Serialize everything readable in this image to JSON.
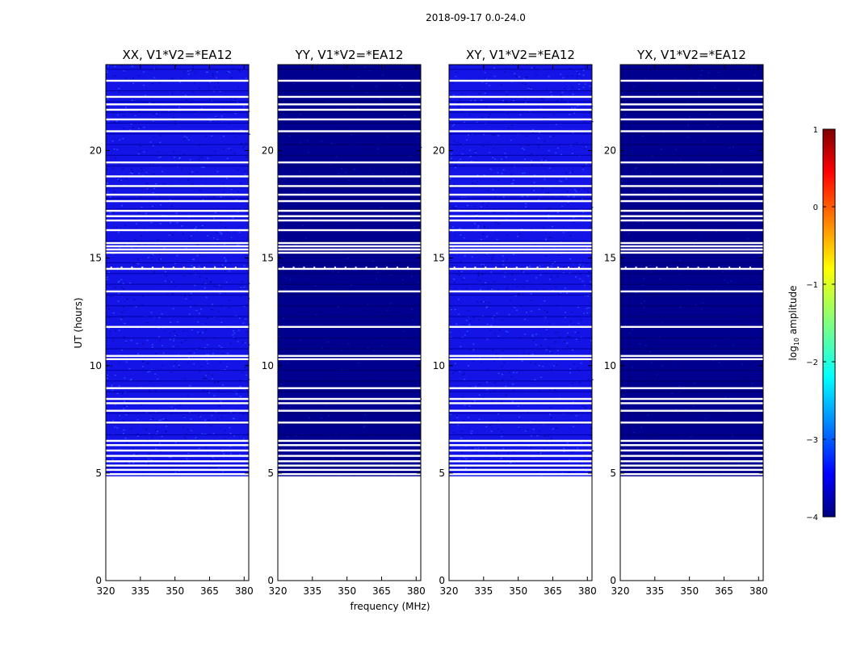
{
  "chart_data": {
    "type": "heatmap",
    "suptitle": "2018-09-17 0.0-24.0",
    "xlabel": "frequency (MHz)",
    "ylabel": "UT (hours)",
    "xlim": [
      320,
      382
    ],
    "ylim": [
      0,
      24
    ],
    "xticks": [
      320,
      335,
      350,
      365,
      380
    ],
    "yticks": [
      0,
      5,
      10,
      15,
      20
    ],
    "data_start_hour": 4.85,
    "panels": [
      {
        "title": "XX, V1*V2=*EA12",
        "level": "high",
        "dots_row_hour": 14.6
      },
      {
        "title": "YY, V1*V2=*EA12",
        "level": "low",
        "dots_row_hour": 14.6
      },
      {
        "title": "XY, V1*V2=*EA12",
        "level": "high",
        "dots_row_hour": 14.6
      },
      {
        "title": "YX, V1*V2=*EA12",
        "level": "low",
        "dots_row_hour": 14.6
      }
    ],
    "flagged_hours": [
      4.95,
      5.15,
      5.35,
      5.55,
      5.8,
      6.05,
      6.3,
      6.5,
      7.35,
      7.9,
      8.25,
      8.45,
      8.95,
      10.3,
      10.45,
      11.8,
      13.45,
      14.5,
      15.25,
      15.4,
      15.55,
      15.7,
      16.3,
      16.75,
      16.95,
      17.2,
      17.65,
      17.95,
      18.35,
      18.8,
      19.45,
      20.9,
      21.45,
      21.9,
      22.15,
      22.5,
      23.25
    ],
    "colorbar": {
      "label": "log10 amplitude",
      "label_prefix": "log",
      "label_sub": "10",
      "label_suffix": " amplitude",
      "min": -4,
      "max": 1,
      "ticks": [
        1,
        0,
        -1,
        -2,
        -3,
        -4
      ],
      "tick_labels": [
        "1",
        "0",
        "−1",
        "−2",
        "−3",
        "−4"
      ],
      "colormap": "jet"
    }
  }
}
